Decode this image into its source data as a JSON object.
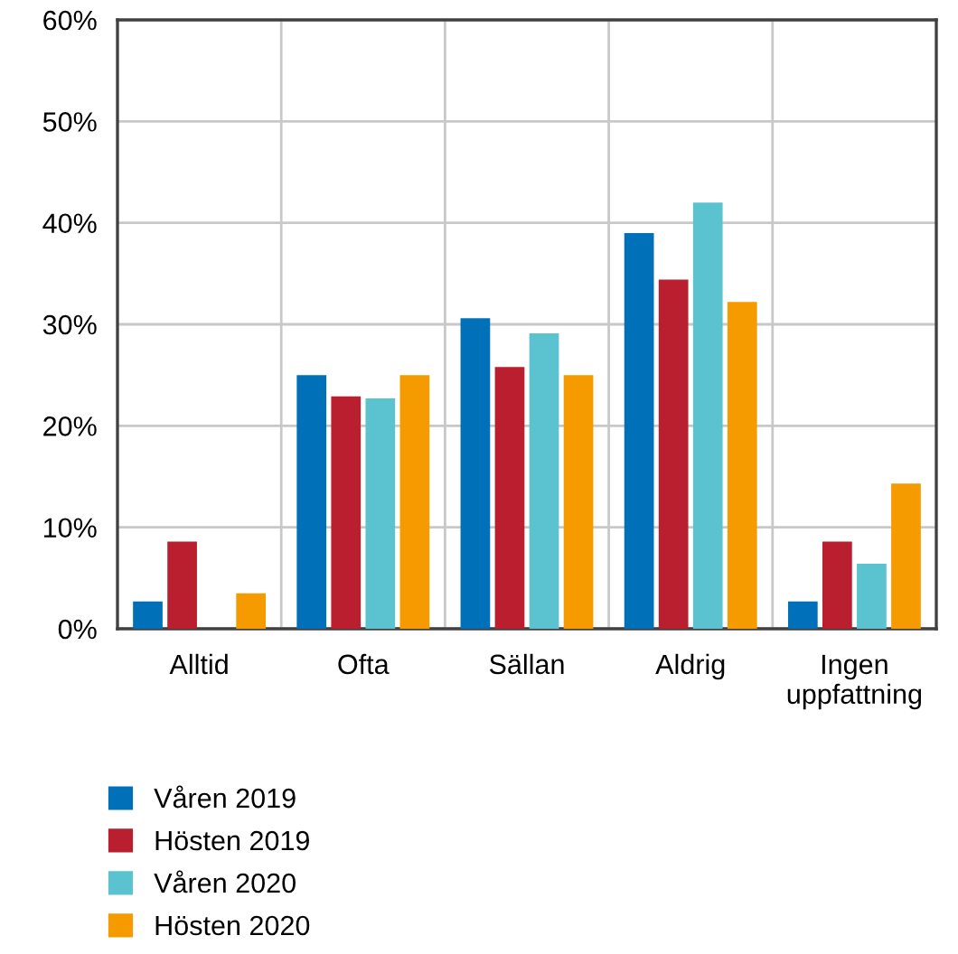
{
  "chart_data": {
    "type": "bar",
    "categories": [
      "Alltid",
      "Ofta",
      "Sällan",
      "Aldrig",
      "Ingen\nuppfattning"
    ],
    "series": [
      {
        "name": "Våren 2019",
        "color": "#0070b8",
        "values": [
          2.7,
          25.0,
          30.6,
          39.0,
          2.7
        ]
      },
      {
        "name": "Hösten 2019",
        "color": "#b91f2e",
        "values": [
          8.6,
          22.9,
          25.8,
          34.4,
          8.6
        ]
      },
      {
        "name": "Våren 2020",
        "color": "#5bc2d0",
        "values": [
          0,
          22.7,
          29.1,
          42.0,
          6.4
        ]
      },
      {
        "name": "Hösten 2020",
        "color": "#f59b00",
        "values": [
          3.5,
          25.0,
          25.0,
          32.2,
          14.3
        ]
      }
    ],
    "ylim": [
      0,
      60
    ],
    "yticks": [
      {
        "value": 0,
        "label": "0%"
      },
      {
        "value": 10,
        "label": "10%"
      },
      {
        "value": 20,
        "label": "20%"
      },
      {
        "value": 30,
        "label": "30%"
      },
      {
        "value": 40,
        "label": "40%"
      },
      {
        "value": 50,
        "label": "50%"
      },
      {
        "value": 60,
        "label": "60%"
      }
    ],
    "grid": true,
    "legend": "bottom"
  }
}
